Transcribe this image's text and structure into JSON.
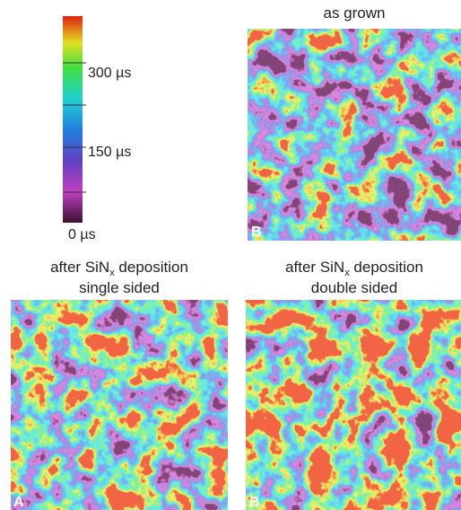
{
  "colorbar": {
    "labels": [
      "300 µs",
      "150 µs",
      "0 µs"
    ]
  },
  "panels": [
    {
      "title": "as grown",
      "letter": "B"
    },
    {
      "title_line1": {
        "text": "after SiN",
        "sub": "x",
        "rest": " deposition"
      },
      "title_line2": "single sided",
      "letter": "A"
    },
    {
      "title_line1": {
        "text": "after SiN",
        "sub": "x",
        "rest": " deposition"
      },
      "title_line2": "double sided",
      "letter": "B"
    }
  ]
}
